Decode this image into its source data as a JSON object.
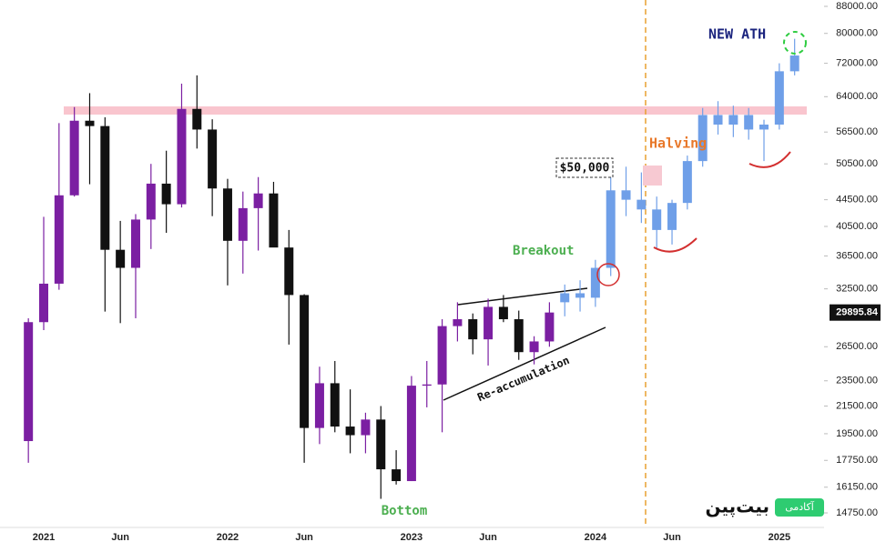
{
  "chart_data": {
    "type": "candlestick",
    "log_scale": true,
    "ylim": [
      14012,
      90000
    ],
    "yticks": [
      {
        "value": 14750,
        "label": "14750.00"
      },
      {
        "value": 16150,
        "label": "16150.00"
      },
      {
        "value": 17750,
        "label": "17750.00"
      },
      {
        "value": 19500,
        "label": "19500.00"
      },
      {
        "value": 21500,
        "label": "21500.00"
      },
      {
        "value": 23500,
        "label": "23500.00"
      },
      {
        "value": 26500,
        "label": "26500.00"
      },
      {
        "value": 32500,
        "label": "32500.00"
      },
      {
        "value": 36500,
        "label": "36500.00"
      },
      {
        "value": 40500,
        "label": "40500.00"
      },
      {
        "value": 44500,
        "label": "44500.00"
      },
      {
        "value": 50500,
        "label": "50500.00"
      },
      {
        "value": 56500,
        "label": "56500.00"
      },
      {
        "value": 64000,
        "label": "64000.00"
      },
      {
        "value": 72000,
        "label": "72000.00"
      },
      {
        "value": 80000,
        "label": "80000.00"
      },
      {
        "value": 88000,
        "label": "88000.00"
      }
    ],
    "last_price": 29895.84,
    "categories": [
      null,
      "2021",
      null,
      null,
      null,
      null,
      "Jun",
      null,
      null,
      null,
      null,
      null,
      null,
      "2022",
      null,
      null,
      null,
      null,
      "Jun",
      null,
      null,
      null,
      null,
      null,
      null,
      "2023",
      null,
      null,
      null,
      null,
      "Jun",
      null,
      null,
      null,
      null,
      null,
      null,
      "2024",
      null,
      null,
      null,
      null,
      "Jun",
      null,
      null,
      null,
      null,
      null,
      null,
      "2025",
      null
    ],
    "series": [
      {
        "up_color": "#7b1fa2",
        "down_color": "#111111",
        "open": [
          19000,
          28900,
          33100,
          45200,
          58800,
          57700,
          37300,
          35000,
          41500,
          47100,
          43800,
          61300,
          57000,
          46300,
          38500,
          43200,
          45500,
          37600,
          31800,
          19900,
          23300,
          20000,
          19400,
          20500,
          17200,
          16500,
          23100,
          23200,
          28500,
          29200,
          27200,
          30500,
          29200,
          26000,
          27000,
          null,
          null,
          null,
          null,
          null,
          null,
          null,
          null,
          null,
          null,
          null,
          null,
          null,
          null,
          null,
          null
        ],
        "high": [
          29300,
          41900,
          58300,
          61700,
          64800,
          59500,
          41300,
          42300,
          50500,
          52900,
          67000,
          69000,
          59100,
          47900,
          45800,
          48200,
          47400,
          40000,
          31900,
          24700,
          25200,
          22800,
          21000,
          21500,
          18400,
          23900,
          25200,
          29200,
          31000,
          29800,
          31400,
          31800,
          30100,
          27500,
          31000,
          null,
          null,
          null,
          null,
          null,
          null,
          null,
          null,
          null,
          null,
          null,
          null,
          null,
          null,
          null,
          null
        ],
        "low": [
          17600,
          28100,
          32400,
          45000,
          47000,
          30000,
          28800,
          29300,
          37400,
          39600,
          43300,
          53300,
          42000,
          32900,
          34300,
          37200,
          37700,
          26700,
          17600,
          18800,
          19600,
          18200,
          18200,
          15500,
          16300,
          16500,
          21400,
          19600,
          27000,
          25800,
          24800,
          28900,
          25300,
          24900,
          26500,
          null,
          null,
          null,
          null,
          null,
          null,
          null,
          null,
          null,
          null,
          null,
          null,
          null,
          null,
          null,
          null
        ],
        "close": [
          28900,
          33100,
          45200,
          58800,
          57700,
          37300,
          35000,
          41500,
          47100,
          43800,
          61300,
          57000,
          46300,
          38500,
          43200,
          45500,
          37600,
          31800,
          19900,
          23300,
          20000,
          19400,
          20500,
          17200,
          16500,
          23100,
          23200,
          28500,
          29200,
          27200,
          30500,
          29200,
          26000,
          27000,
          29900,
          null,
          null,
          null,
          null,
          null,
          null,
          null,
          null,
          null,
          null,
          null,
          null,
          null,
          null,
          null,
          null
        ]
      },
      {
        "up_color": "#6f9fe8",
        "down_color": "#6f9fe8",
        "open": [
          null,
          null,
          null,
          null,
          null,
          null,
          null,
          null,
          null,
          null,
          null,
          null,
          null,
          null,
          null,
          null,
          null,
          null,
          null,
          null,
          null,
          null,
          null,
          null,
          null,
          null,
          null,
          null,
          null,
          null,
          null,
          null,
          null,
          null,
          null,
          31000,
          32000,
          31500,
          35000,
          46000,
          44500,
          43000,
          40000,
          44000,
          51000,
          60000,
          58000,
          60000,
          57000,
          58000,
          70000
        ],
        "high": [
          null,
          null,
          null,
          null,
          null,
          null,
          null,
          null,
          null,
          null,
          null,
          null,
          null,
          null,
          null,
          null,
          null,
          null,
          null,
          null,
          null,
          null,
          null,
          null,
          null,
          null,
          null,
          null,
          null,
          null,
          null,
          null,
          null,
          null,
          null,
          33000,
          33500,
          36000,
          50500,
          50000,
          49000,
          45000,
          44500,
          52000,
          61500,
          63000,
          62000,
          61500,
          59000,
          72000,
          78500
        ],
        "low": [
          null,
          null,
          null,
          null,
          null,
          null,
          null,
          null,
          null,
          null,
          null,
          null,
          null,
          null,
          null,
          null,
          null,
          null,
          null,
          null,
          null,
          null,
          null,
          null,
          null,
          null,
          null,
          null,
          null,
          null,
          null,
          null,
          null,
          null,
          null,
          29500,
          30000,
          30500,
          34000,
          42000,
          41000,
          37500,
          38000,
          43000,
          50000,
          56000,
          55500,
          55000,
          51000,
          57000,
          69000
        ],
        "close": [
          null,
          null,
          null,
          null,
          null,
          null,
          null,
          null,
          null,
          null,
          null,
          null,
          null,
          null,
          null,
          null,
          null,
          null,
          null,
          null,
          null,
          null,
          null,
          null,
          null,
          null,
          null,
          null,
          null,
          null,
          null,
          null,
          null,
          null,
          null,
          32000,
          31500,
          35000,
          46000,
          44500,
          43000,
          40000,
          44000,
          51000,
          60000,
          58000,
          60000,
          57000,
          58000,
          70000,
          74000
        ]
      }
    ],
    "annotations": {
      "new_ath": "NEW ATH",
      "halving": "Halving",
      "price_50k": "$50,000",
      "breakout": "Breakout",
      "reaccumulation": "Re-accumulation",
      "bottom": "Bottom"
    },
    "watermark": {
      "brand": "بیت‌پین",
      "badge": "آکادمی"
    }
  }
}
